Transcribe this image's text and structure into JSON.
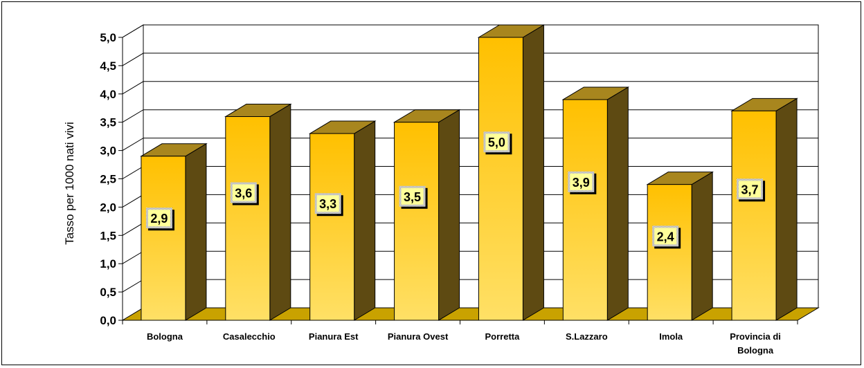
{
  "chart_data": {
    "type": "bar",
    "title": "",
    "xlabel": "",
    "ylabel": "Tasso per 1000 nati vivi",
    "ylim": [
      0,
      5
    ],
    "yticks": [
      "0,0",
      "0,5",
      "1,0",
      "1,5",
      "2,0",
      "2,5",
      "3,0",
      "3,5",
      "4,0",
      "4,5",
      "5,0"
    ],
    "categories": [
      [
        "Bologna"
      ],
      [
        "Casalecchio"
      ],
      [
        "Pianura Est"
      ],
      [
        "Pianura Ovest"
      ],
      [
        "Porretta"
      ],
      [
        "S.Lazzaro"
      ],
      [
        "Imola"
      ],
      [
        "Provincia di",
        "Bologna"
      ]
    ],
    "values": [
      2.9,
      3.6,
      3.3,
      3.5,
      5.0,
      3.9,
      2.4,
      3.7
    ],
    "data_labels": [
      "2,9",
      "3,6",
      "3,3",
      "3,5",
      "5,0",
      "3,9",
      "2,4",
      "3,7"
    ],
    "grid": true,
    "legend": "none",
    "colors": {
      "bar_front": "#FFC000",
      "bar_front_light": "#FFE066",
      "bar_side": "#5E4A12",
      "bar_top": "#A8861E",
      "floor": "#C9A200",
      "label_bg": "#FFFF99"
    }
  }
}
